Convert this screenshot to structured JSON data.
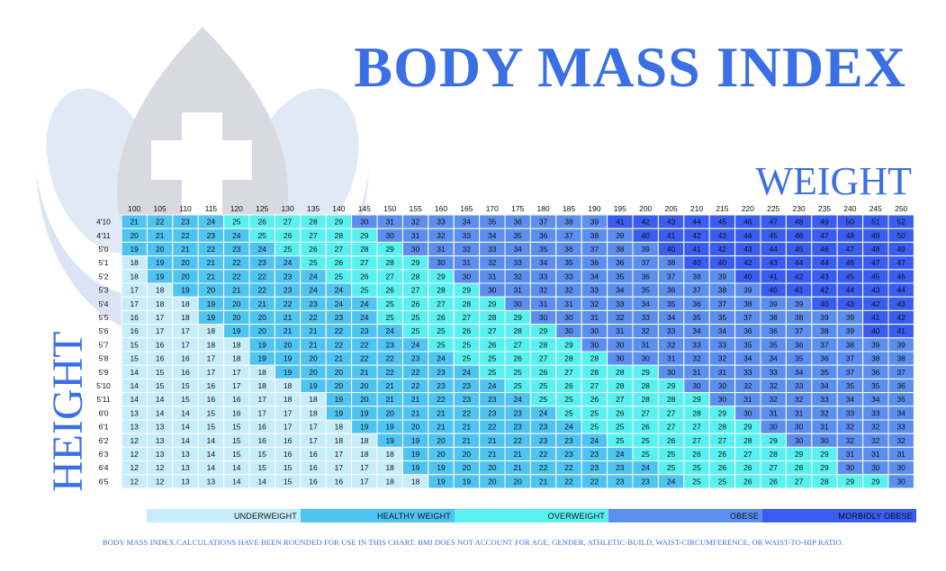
{
  "title": "BODY MASS INDEX",
  "weight_label": "WEIGHT",
  "height_label": "HEIGHT",
  "logo_icon": "medical-cross-drop-icon",
  "colors": {
    "underweight": "#c6edf9",
    "healthy": "#4fc3f2",
    "overweight": "#58f0f0",
    "obese": "#5b8eee",
    "morbidly_obese": "#3a5cf0",
    "title": "#3b6fe6"
  },
  "legend": {
    "underweight": "UNDERWEIGHT",
    "healthy": "HEALTHY WEIGHT",
    "overweight": "OVERWEIGHT",
    "obese": "OBESE",
    "morbidly_obese": "MORBIDLY OBESE"
  },
  "footnote": "BODY MASS INDEX CALCULATIONS HAVE BEEN ROUNDED FOR USE IN THIS CHART. BMI DOES NOT ACCOUNT FOR AGE, GENDER, ATHLETIC-BUILD, WAIST-CIRCUMFERENCE, OR WAIST-TO-HIP RATIO.",
  "chart_data": {
    "type": "heatmap",
    "title": "BODY MASS INDEX",
    "xlabel": "WEIGHT",
    "ylabel": "HEIGHT",
    "weights": [
      "100",
      "105",
      "110",
      "115",
      "120",
      "125",
      "130",
      "135",
      "140",
      "145",
      "150",
      "155",
      "160",
      "165",
      "170",
      "175",
      "180",
      "185",
      "190",
      "195",
      "200",
      "205",
      "210",
      "215",
      "220",
      "225",
      "230",
      "235",
      "240",
      "245",
      "250"
    ],
    "heights": [
      "4'10",
      "4'11",
      "5'0",
      "5'1",
      "5'2",
      "5'3",
      "5'4",
      "5'5",
      "5'6",
      "5'7",
      "5'8",
      "5'9",
      "5'10",
      "5'11",
      "6'0",
      "6'1",
      "6'2",
      "6'3",
      "6'4",
      "6'5"
    ],
    "bmi": [
      [
        21,
        22,
        23,
        24,
        25,
        26,
        27,
        28,
        29,
        30,
        31,
        32,
        33,
        34,
        35,
        36,
        37,
        38,
        39,
        41,
        42,
        43,
        44,
        45,
        46,
        47,
        48,
        49,
        50,
        51,
        52
      ],
      [
        20,
        21,
        22,
        23,
        24,
        25,
        26,
        27,
        28,
        29,
        30,
        31,
        32,
        33,
        34,
        35,
        36,
        37,
        38,
        39,
        40,
        41,
        42,
        43,
        44,
        45,
        46,
        47,
        48,
        49,
        50
      ],
      [
        19,
        20,
        21,
        22,
        23,
        24,
        25,
        26,
        27,
        28,
        29,
        30,
        31,
        32,
        33,
        34,
        35,
        36,
        37,
        38,
        39,
        40,
        41,
        42,
        43,
        44,
        45,
        46,
        47,
        48,
        49
      ],
      [
        18,
        19,
        20,
        21,
        22,
        23,
        24,
        25,
        26,
        27,
        28,
        29,
        30,
        31,
        32,
        33,
        34,
        35,
        36,
        36,
        37,
        38,
        40,
        40,
        42,
        43,
        44,
        44,
        46,
        47,
        47
      ],
      [
        18,
        19,
        20,
        21,
        22,
        22,
        23,
        24,
        25,
        26,
        27,
        28,
        29,
        30,
        31,
        32,
        33,
        33,
        34,
        35,
        36,
        37,
        38,
        39,
        40,
        41,
        42,
        43,
        45,
        45,
        46
      ],
      [
        17,
        18,
        19,
        20,
        21,
        22,
        23,
        24,
        24,
        25,
        26,
        27,
        28,
        29,
        30,
        31,
        32,
        32,
        33,
        34,
        35,
        36,
        37,
        38,
        39,
        40,
        41,
        42,
        44,
        43,
        44
      ],
      [
        17,
        18,
        18,
        19,
        20,
        21,
        22,
        23,
        24,
        24,
        25,
        26,
        27,
        28,
        29,
        30,
        31,
        31,
        32,
        33,
        34,
        35,
        36,
        37,
        38,
        39,
        39,
        40,
        43,
        42,
        43
      ],
      [
        16,
        17,
        18,
        19,
        20,
        20,
        21,
        22,
        23,
        24,
        25,
        25,
        26,
        27,
        28,
        29,
        30,
        30,
        31,
        32,
        33,
        34,
        35,
        35,
        37,
        38,
        38,
        39,
        39,
        41,
        42
      ],
      [
        16,
        17,
        17,
        18,
        19,
        20,
        21,
        21,
        22,
        23,
        24,
        25,
        25,
        26,
        27,
        28,
        29,
        30,
        30,
        31,
        32,
        33,
        34,
        34,
        36,
        36,
        37,
        38,
        39,
        40,
        41
      ],
      [
        15,
        16,
        17,
        18,
        18,
        19,
        20,
        21,
        22,
        22,
        23,
        24,
        25,
        25,
        26,
        27,
        28,
        29,
        30,
        30,
        31,
        32,
        33,
        33,
        35,
        35,
        36,
        37,
        38,
        39,
        39
      ],
      [
        15,
        16,
        16,
        17,
        18,
        19,
        19,
        20,
        21,
        22,
        22,
        23,
        24,
        25,
        25,
        26,
        27,
        28,
        28,
        30,
        30,
        31,
        32,
        32,
        34,
        34,
        35,
        36,
        37,
        38,
        38
      ],
      [
        14,
        15,
        16,
        17,
        17,
        18,
        19,
        20,
        20,
        21,
        22,
        22,
        23,
        24,
        25,
        25,
        26,
        27,
        28,
        28,
        29,
        30,
        31,
        31,
        33,
        33,
        34,
        35,
        37,
        36,
        37
      ],
      [
        14,
        15,
        15,
        16,
        17,
        18,
        18,
        19,
        20,
        20,
        21,
        22,
        23,
        23,
        24,
        25,
        25,
        26,
        27,
        28,
        28,
        29,
        30,
        30,
        32,
        32,
        33,
        34,
        35,
        35,
        36
      ],
      [
        14,
        14,
        15,
        16,
        16,
        17,
        18,
        18,
        19,
        20,
        21,
        21,
        22,
        23,
        23,
        24,
        25,
        25,
        26,
        27,
        28,
        28,
        29,
        30,
        31,
        32,
        32,
        33,
        34,
        34,
        35
      ],
      [
        13,
        14,
        14,
        15,
        16,
        17,
        17,
        18,
        19,
        19,
        20,
        21,
        21,
        22,
        23,
        23,
        24,
        25,
        25,
        26,
        27,
        27,
        28,
        29,
        30,
        31,
        31,
        32,
        33,
        33,
        34
      ],
      [
        13,
        13,
        14,
        15,
        15,
        16,
        17,
        17,
        18,
        19,
        19,
        20,
        21,
        21,
        22,
        23,
        23,
        24,
        25,
        25,
        26,
        27,
        27,
        28,
        29,
        30,
        30,
        31,
        32,
        32,
        33
      ],
      [
        12,
        13,
        14,
        14,
        15,
        16,
        16,
        17,
        18,
        18,
        19,
        19,
        20,
        21,
        21,
        22,
        23,
        23,
        24,
        25,
        25,
        26,
        27,
        27,
        28,
        29,
        30,
        30,
        32,
        32,
        32
      ],
      [
        12,
        13,
        13,
        14,
        15,
        15,
        16,
        16,
        17,
        18,
        18,
        19,
        20,
        20,
        21,
        21,
        22,
        23,
        23,
        24,
        25,
        25,
        26,
        26,
        27,
        28,
        29,
        29,
        31,
        31,
        31
      ],
      [
        12,
        12,
        13,
        14,
        14,
        15,
        15,
        16,
        17,
        17,
        18,
        19,
        19,
        20,
        20,
        21,
        22,
        22,
        23,
        23,
        24,
        25,
        25,
        26,
        26,
        27,
        28,
        29,
        30,
        30,
        30
      ],
      [
        12,
        12,
        13,
        13,
        14,
        14,
        15,
        16,
        16,
        17,
        18,
        18,
        19,
        19,
        20,
        20,
        21,
        22,
        22,
        23,
        23,
        24,
        25,
        25,
        26,
        26,
        27,
        28,
        29,
        29,
        30
      ]
    ],
    "categories": [
      {
        "label": "UNDERWEIGHT",
        "range": [
          0,
          18.5
        ]
      },
      {
        "label": "HEALTHY WEIGHT",
        "range": [
          18.5,
          25
        ]
      },
      {
        "label": "OVERWEIGHT",
        "range": [
          25,
          30
        ]
      },
      {
        "label": "OBESE",
        "range": [
          30,
          40
        ]
      },
      {
        "label": "MORBIDLY OBESE",
        "range": [
          40,
          100
        ]
      }
    ]
  }
}
